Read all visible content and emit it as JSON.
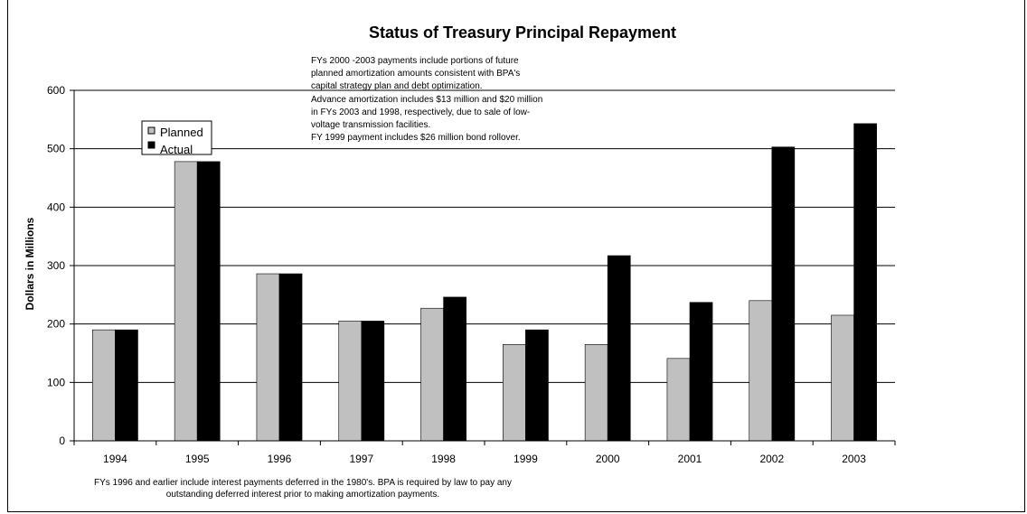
{
  "chart_data": {
    "type": "bar",
    "title": "Status of Treasury Principal Repayment",
    "xlabel": "",
    "ylabel": "Dollars in Millions",
    "ylim": [
      0,
      600
    ],
    "yticks": [
      0,
      100,
      200,
      300,
      400,
      500,
      600
    ],
    "grid": true,
    "legend_position": "top-left",
    "categories": [
      "1994",
      "1995",
      "1996",
      "1997",
      "1998",
      "1999",
      "2000",
      "2001",
      "2002",
      "2003"
    ],
    "series": [
      {
        "name": "Planned",
        "color": "#c0c0c0",
        "values": [
          190,
          478,
          286,
          205,
          227,
          165,
          165,
          141,
          240,
          215
        ]
      },
      {
        "name": "Actual",
        "color": "#000000",
        "values": [
          190,
          478,
          286,
          205,
          246,
          190,
          317,
          237,
          503,
          543
        ]
      }
    ],
    "annotations": [
      "FYs 2000 -2003 payments include portions of future",
      "planned amortization amounts consistent with BPA's",
      "capital strategy plan and debt optimization.",
      "Advance amortization includes $13 million and $20 million",
      "in FYs 2003 and 1998, respectively, due to sale of low-",
      "voltage transmission facilities.",
      "FY 1999 payment includes $26 million bond rollover."
    ],
    "footnotes": [
      "FYs 1996 and earlier include interest payments deferred in the 1980's.  BPA is required by law to pay any",
      "outstanding deferred interest prior to making amortization payments."
    ]
  }
}
